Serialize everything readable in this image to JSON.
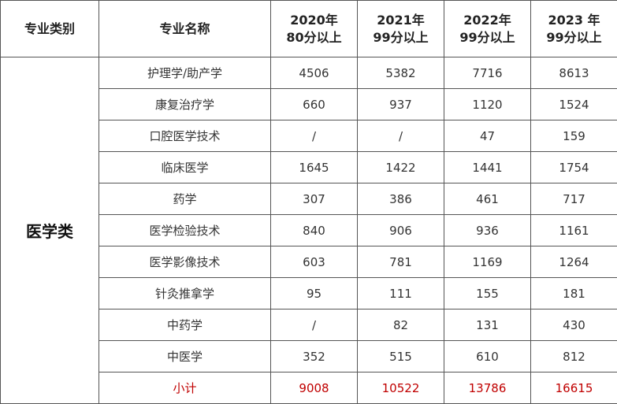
{
  "table": {
    "headers": {
      "category": "专业类别",
      "name": "专业名称",
      "years": [
        {
          "line1": "2020年",
          "line2": "80分以上"
        },
        {
          "line1": "2021年",
          "line2": "99分以上"
        },
        {
          "line1": "2022年",
          "line2": "99分以上"
        },
        {
          "line1": "2023 年",
          "line2": "99分以上"
        }
      ]
    },
    "category": "医学类",
    "rows": [
      {
        "name": "护理学/助产学",
        "values": [
          "4506",
          "5382",
          "7716",
          "8613"
        ]
      },
      {
        "name": "康复治疗学",
        "values": [
          "660",
          "937",
          "1120",
          "1524"
        ]
      },
      {
        "name": "口腔医学技术",
        "values": [
          "/",
          "/",
          "47",
          "159"
        ]
      },
      {
        "name": "临床医学",
        "values": [
          "1645",
          "1422",
          "1441",
          "1754"
        ]
      },
      {
        "name": "药学",
        "values": [
          "307",
          "386",
          "461",
          "717"
        ]
      },
      {
        "name": "医学检验技术",
        "values": [
          "840",
          "906",
          "936",
          "1161"
        ]
      },
      {
        "name": "医学影像技术",
        "values": [
          "603",
          "781",
          "1169",
          "1264"
        ]
      },
      {
        "name": "针灸推拿学",
        "values": [
          "95",
          "111",
          "155",
          "181"
        ]
      },
      {
        "name": "中药学",
        "values": [
          "/",
          "82",
          "131",
          "430"
        ]
      },
      {
        "name": "中医学",
        "values": [
          "352",
          "515",
          "610",
          "812"
        ]
      }
    ],
    "subtotal": {
      "name": "小计",
      "values": [
        "9008",
        "10522",
        "13786",
        "16615"
      ]
    }
  },
  "colors": {
    "subtotal_text": "#c00000",
    "border": "#555555"
  }
}
